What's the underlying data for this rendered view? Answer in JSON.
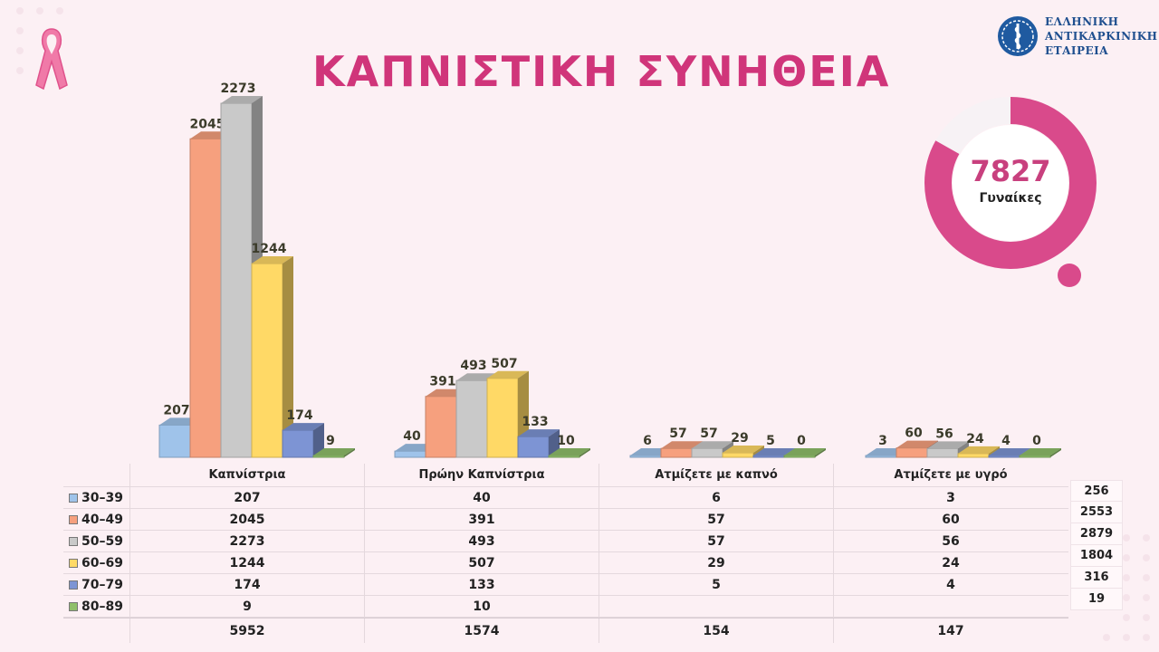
{
  "title": "ΚΑΠΝΙΣΤΙΚΗ ΣΥΝΗΘΕΙΑ",
  "logo": {
    "line1": "ΕΛΛΗΝΙΚΗ",
    "line2": "ΑΝΤΙΚΑΡΚΙΝΙΚΗ",
    "line3": "ΕΤΑΙΡΕΙΑ"
  },
  "total_card": {
    "number": "7827",
    "label": "Γυναίκες"
  },
  "colors": {
    "title": "#d0357a",
    "donut": "#d94a8b"
  },
  "chart_data": {
    "type": "bar",
    "categories": [
      "Καπνίστρια",
      "Πρώην Καπνίστρια",
      "Ατμίζετε με καπνό",
      "Ατμίζετε με υγρό"
    ],
    "series": [
      {
        "name": "30–39",
        "values": [
          207,
          40,
          6,
          3
        ],
        "color": "#9fc3ea"
      },
      {
        "name": "40–49",
        "values": [
          2045,
          391,
          57,
          60
        ],
        "color": "#f6a07e"
      },
      {
        "name": "50–59",
        "values": [
          2273,
          493,
          57,
          56
        ],
        "color": "#c9c9c9"
      },
      {
        "name": "60–69",
        "values": [
          1244,
          507,
          29,
          24
        ],
        "color": "#ffd966"
      },
      {
        "name": "70–79",
        "values": [
          174,
          133,
          5,
          4
        ],
        "color": "#7d94d4"
      },
      {
        "name": "80–89",
        "values": [
          9,
          10,
          0,
          0
        ],
        "color": "#8fbf6a"
      }
    ],
    "table_values": [
      [
        "207",
        "40",
        "6",
        "3"
      ],
      [
        "2045",
        "391",
        "57",
        "60"
      ],
      [
        "2273",
        "493",
        "57",
        "56"
      ],
      [
        "1244",
        "507",
        "29",
        "24"
      ],
      [
        "174",
        "133",
        "5",
        "4"
      ],
      [
        "9",
        "10",
        "",
        ""
      ]
    ],
    "column_totals": [
      "5952",
      "1574",
      "154",
      "147"
    ],
    "row_totals": [
      "256",
      "2553",
      "2879",
      "1804",
      "316",
      "19"
    ],
    "ylim": [
      0,
      2500
    ]
  }
}
